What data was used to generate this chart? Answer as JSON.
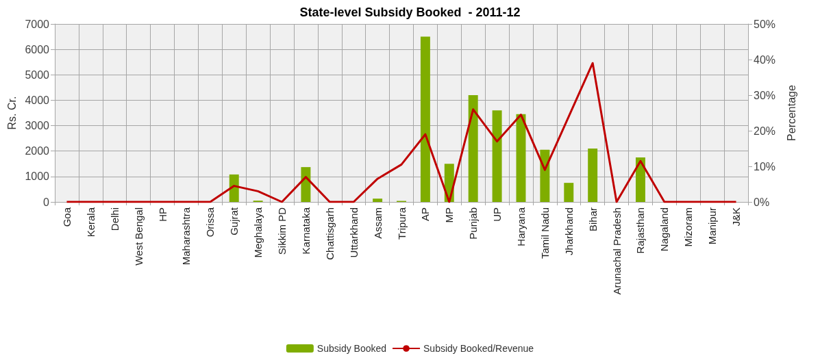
{
  "chart_data": {
    "type": "bar",
    "title": "State-level Subsidy Booked  - 2011-12",
    "ylabel": "Rs. Cr.",
    "y2label": "Percentage",
    "categories": [
      "Goa",
      "Kerala",
      "Delhi",
      "West Bengal",
      "HP",
      "Maharashtra",
      "Orissa",
      "Gujrat",
      "Meghalaya",
      "Sikkim PD",
      "Karnataka",
      "Chattisgarh",
      "Uttarkhand",
      "Assam",
      "Tripura",
      "AP",
      "MP",
      "Punjab",
      "UP",
      "Haryana",
      "Tamil Nadu",
      "Jharkhand",
      "Bihar",
      "Arunachal Pradesh",
      "Rajasthan",
      "Nagaland",
      "Mizoram",
      "Manipur",
      "J&K"
    ],
    "series": [
      {
        "name": "Subsidy Booked",
        "type": "bar",
        "color": "#7fad00",
        "values": [
          0,
          0,
          0,
          0,
          0,
          0,
          0,
          1080,
          50,
          0,
          1370,
          0,
          0,
          130,
          40,
          6500,
          1500,
          4200,
          3600,
          3450,
          2050,
          750,
          2100,
          0,
          1750,
          0,
          0,
          0,
          0
        ]
      },
      {
        "name": "Subsidy Booked/Revenue",
        "type": "line",
        "axis": "y2",
        "color": "#c00000",
        "marker": "none",
        "values": [
          0,
          0,
          0,
          0,
          0,
          0,
          0,
          4.5,
          3,
          0,
          7,
          0,
          0,
          6.5,
          10.5,
          19,
          0,
          26,
          17,
          24.5,
          9,
          24,
          39,
          0,
          11.5,
          0,
          0,
          0,
          0
        ]
      }
    ],
    "ylim": [
      0,
      7000
    ],
    "yticks": [
      0,
      1000,
      2000,
      3000,
      4000,
      5000,
      6000,
      7000
    ],
    "y2lim": [
      0,
      50
    ],
    "y2ticks": [
      {
        "value": 0,
        "label": "0%"
      },
      {
        "value": 10,
        "label": "10%"
      },
      {
        "value": 20,
        "label": "20%"
      },
      {
        "value": 30,
        "label": "30%"
      },
      {
        "value": 40,
        "label": "40%"
      },
      {
        "value": 50,
        "label": "50%"
      }
    ],
    "grid": true,
    "legend": "bottom"
  }
}
